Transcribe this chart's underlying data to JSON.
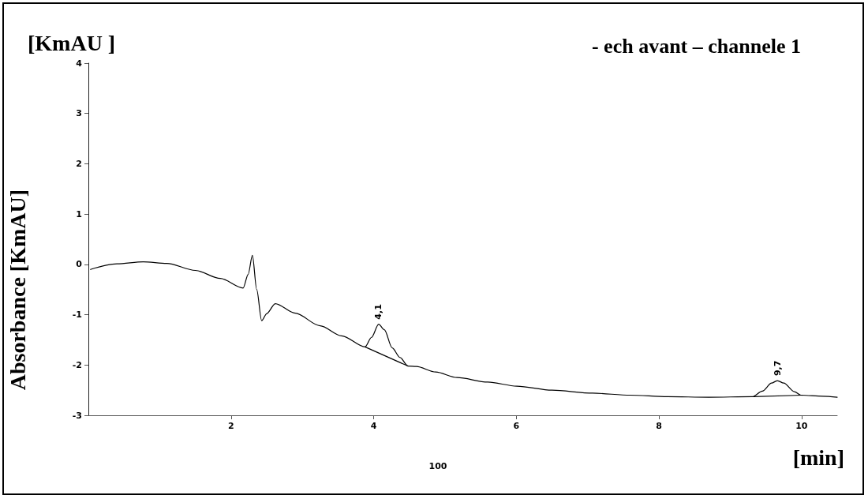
{
  "chart_data": {
    "type": "line",
    "title": "- ech avant – channele 1",
    "xlabel": "[min]",
    "ylabel": "Absorbance [KmAU]",
    "annotations": [
      "[KmAU ]",
      "100",
      {
        "text": "4,1",
        "x": 4.07,
        "y": -1.19
      },
      {
        "text": "9,7",
        "x": 9.66,
        "y": -2.31
      }
    ],
    "series": [
      {
        "color": "#000000",
        "x": [
          0.03,
          0.4,
          0.77,
          1.1,
          1.5,
          1.85,
          2.17,
          2.24,
          2.3,
          2.36,
          2.43,
          2.5,
          2.62,
          2.9,
          3.25,
          3.55,
          3.88,
          3.97,
          4.07,
          4.15,
          4.26,
          4.37,
          4.48,
          4.6,
          4.87,
          5.17,
          5.6,
          6.01,
          6.5,
          7.07,
          7.6,
          8.12,
          8.7,
          9.31,
          9.45,
          9.58,
          9.66,
          9.75,
          9.9,
          9.99,
          10.3,
          10.5
        ],
        "values": [
          -0.1,
          0.01,
          0.05,
          0.02,
          -0.12,
          -0.28,
          -0.47,
          -0.2,
          0.18,
          -0.5,
          -1.12,
          -0.98,
          -0.78,
          -0.97,
          -1.22,
          -1.42,
          -1.64,
          -1.45,
          -1.19,
          -1.3,
          -1.66,
          -1.85,
          -2.02,
          -2.03,
          -2.14,
          -2.25,
          -2.34,
          -2.42,
          -2.5,
          -2.56,
          -2.6,
          -2.63,
          -2.64,
          -2.63,
          -2.52,
          -2.36,
          -2.31,
          -2.36,
          -2.53,
          -2.6,
          -2.62,
          -2.64
        ]
      },
      {
        "color": "#000000",
        "x": [
          3.88,
          4.48
        ],
        "values": [
          -1.64,
          -2.02
        ]
      },
      {
        "color": "#000000",
        "x": [
          9.33,
          10.0
        ],
        "values": [
          -2.63,
          -2.6
        ]
      }
    ],
    "xlim": [
      0,
      10.5
    ],
    "xticks": [
      2,
      4,
      6,
      8,
      10
    ],
    "ylim": [
      -3,
      4
    ],
    "yticks": [
      -3,
      -2,
      -1,
      0,
      1,
      2,
      3,
      4
    ],
    "grid": false,
    "marker": "none",
    "line_style": "solid"
  }
}
